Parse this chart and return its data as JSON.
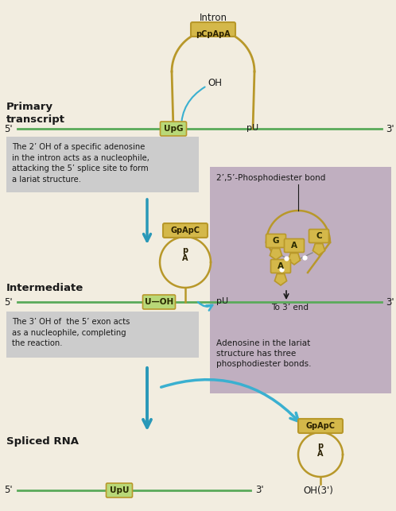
{
  "bg_color": "#f2ede0",
  "green_line_color": "#5aaa5a",
  "gold_color": "#b8982a",
  "gold_fill": "#d4b84a",
  "gold_light": "#e8d878",
  "label_box_green": "#b8d878",
  "arrow_color": "#3ab0d0",
  "dark_arrow_color": "#2898b8",
  "mauve_bg": "#c0afc0",
  "text_color": "#1a1a1a",
  "gray_box_color": "#cccccc",
  "note1": "The 2’ OH of a specific adenosine\nin the intron acts as a nucleophile,\nattacking the 5’ splice site to form\na lariat structure.",
  "note2": "The 3’ OH of  the 5’ exon acts\nas a nucleophile, completing\nthe reaction.",
  "note3": "2’,5’-Phosphodiester bond",
  "note4": "To 3’ end",
  "note5": "Adenosine in the lariat\nstructure has three\nphosphodiester bonds.",
  "intron_label": "Intron",
  "lariat1_label": "pCpApA",
  "lariat2_label": "GpApC",
  "lariat3_label": "GpApC",
  "oh_label": "OH",
  "upg_label": "UpG",
  "pu_label": "pU",
  "u_oh_label": "U—OH",
  "upu_label": "UpU",
  "primary_label": "Primary\ntranscript",
  "intermediate_label": "Intermediate",
  "spliced_label": "Spliced RNA"
}
